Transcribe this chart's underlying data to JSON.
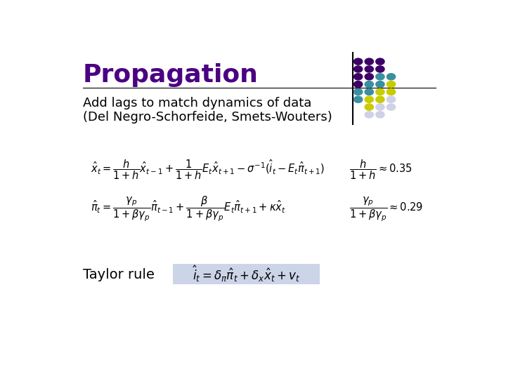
{
  "title": "Propagation",
  "subtitle_line1": "Add lags to match dynamics of data",
  "subtitle_line2": "(Del Negro-Schorfeide, Smets-Wouters)",
  "title_color": "#4B0082",
  "subtitle_color": "#000000",
  "background_color": "#ffffff",
  "taylor_label": "Taylor rule",
  "taylor_box_color": "#ccd4e8",
  "dot_color_map": [
    [
      "#3d0066",
      "#3d0066",
      "#3d0066",
      "none"
    ],
    [
      "#3d0066",
      "#3d0066",
      "#3d0066",
      "none"
    ],
    [
      "#3d0066",
      "#3d0066",
      "#3a8fa0",
      "#3a8fa0"
    ],
    [
      "#3d0066",
      "#3a8fa0",
      "#3a8fa0",
      "#c8cc00"
    ],
    [
      "#3a8fa0",
      "#3a8fa0",
      "#c8cc00",
      "#c8cc00"
    ],
    [
      "#3a8fa0",
      "#c8cc00",
      "#c8cc00",
      "#d0d0e8"
    ],
    [
      "none",
      "#c8cc00",
      "#d0d0e8",
      "#d0d0e8"
    ],
    [
      "none",
      "#d0d0e8",
      "#d0d0e8",
      "none"
    ]
  ]
}
